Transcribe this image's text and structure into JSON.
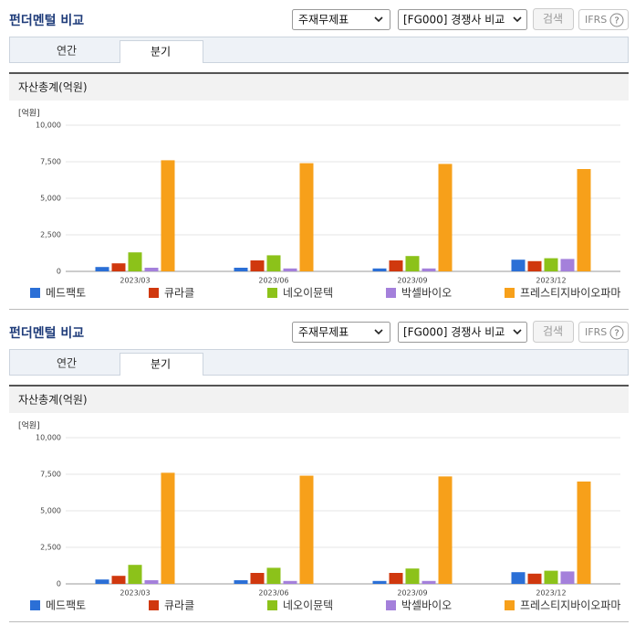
{
  "panels": [
    {
      "title": "펀더멘털 비교",
      "select_report": "주재무제표",
      "select_compare": "[FG000] 경쟁사 비교",
      "button": "검색",
      "ifrs": "IFRS",
      "help": "?",
      "tabs": [
        "연간",
        "분기"
      ],
      "section_title": "자산총계(억원)"
    },
    {
      "title": "펀더멘털 비교",
      "select_report": "주재무제표",
      "select_compare": "[FG000] 경쟁사 비교",
      "button": "검색",
      "ifrs": "IFRS",
      "help": "?",
      "tabs": [
        "연간",
        "분기"
      ],
      "section_title": "자산총계(억원)"
    }
  ],
  "chart_data": [
    {
      "type": "bar",
      "unit": "[억원]",
      "categories": [
        "2023/03",
        "2023/06",
        "2023/09",
        "2023/12"
      ],
      "series": [
        {
          "name": "메드팩토",
          "color": "#2b6fd6",
          "values": [
            300,
            250,
            200,
            800
          ]
        },
        {
          "name": "큐라클",
          "color": "#d0380e",
          "values": [
            550,
            750,
            750,
            700
          ]
        },
        {
          "name": "네오이뮨텍",
          "color": "#8cc21a",
          "values": [
            1300,
            1100,
            1050,
            900
          ]
        },
        {
          "name": "박셀바이오",
          "color": "#a480db",
          "values": [
            250,
            200,
            200,
            850
          ]
        },
        {
          "name": "프레스티지바이오파마",
          "color": "#f7a01a",
          "values": [
            7600,
            7400,
            7350,
            7000
          ]
        }
      ],
      "ylim": [
        0,
        10000
      ],
      "yticks": [
        0,
        {
          "value": 2500,
          "label": "2,500"
        },
        {
          "value": 5000,
          "label": "5,000"
        },
        {
          "value": 7500,
          "label": "7,500"
        },
        {
          "value": 10000,
          "label": "10,000"
        }
      ],
      "grid": true
    },
    {
      "type": "bar",
      "unit": "[억원]",
      "categories": [
        "2023/03",
        "2023/06",
        "2023/09",
        "2023/12"
      ],
      "series": [
        {
          "name": "메드팩토",
          "color": "#2b6fd6",
          "values": [
            300,
            250,
            200,
            800
          ]
        },
        {
          "name": "큐라클",
          "color": "#d0380e",
          "values": [
            550,
            750,
            750,
            700
          ]
        },
        {
          "name": "네오이뮨텍",
          "color": "#8cc21a",
          "values": [
            1300,
            1100,
            1050,
            900
          ]
        },
        {
          "name": "박셀바이오",
          "color": "#a480db",
          "values": [
            250,
            200,
            200,
            850
          ]
        },
        {
          "name": "프레스티지바이오파마",
          "color": "#f7a01a",
          "values": [
            7600,
            7400,
            7350,
            7000
          ]
        }
      ],
      "ylim": [
        0,
        10000
      ],
      "yticks": [
        0,
        {
          "value": 2500,
          "label": "2,500"
        },
        {
          "value": 5000,
          "label": "5,000"
        },
        {
          "value": 7500,
          "label": "7,500"
        },
        {
          "value": 10000,
          "label": "10,000"
        }
      ],
      "grid": true
    }
  ]
}
